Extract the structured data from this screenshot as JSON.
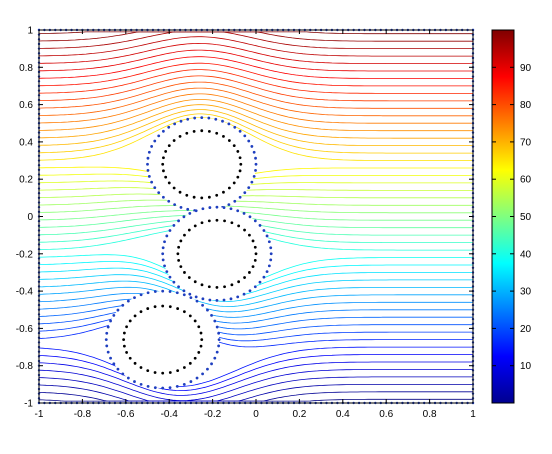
{
  "chart_data": {
    "type": "line",
    "title": "",
    "xlabel": "",
    "ylabel": "",
    "xlim": [
      -1,
      1
    ],
    "ylim": [
      -1,
      1
    ],
    "grid": false,
    "colormap": "jet",
    "colorbar": {
      "range": [
        0,
        100
      ],
      "ticks": [
        10,
        20,
        30,
        40,
        50,
        60,
        70,
        80,
        90
      ],
      "placement": "right"
    },
    "x_ticks": [
      -1,
      -0.8,
      -0.6,
      -0.4,
      -0.2,
      0,
      0.2,
      0.4,
      0.6,
      0.8,
      1
    ],
    "y_ticks": [
      -1,
      -0.8,
      -0.6,
      -0.4,
      -0.2,
      0,
      0.2,
      0.4,
      0.6,
      0.8,
      1
    ],
    "x_tick_labels": [
      "-1",
      "-0.8",
      "-0.6",
      "-0.4",
      "-0.2",
      "0",
      "0.2",
      "0.4",
      "0.6",
      "0.8",
      "1"
    ],
    "y_tick_labels": [
      "-1",
      "-0.8",
      "-0.6",
      "-0.4",
      "-0.2",
      "0",
      "0.2",
      "0.4",
      "0.6",
      "0.8",
      "1"
    ],
    "colorbar_tick_labels": [
      "10",
      "20",
      "30",
      "40",
      "50",
      "60",
      "70",
      "80",
      "90"
    ],
    "streamline_count": 50,
    "obstacles": [
      {
        "cx": -0.25,
        "cy": 0.28,
        "r": 0.25,
        "inner_cx": -0.25,
        "inner_cy": 0.28,
        "inner_r": 0.18
      },
      {
        "cx": -0.18,
        "cy": -0.2,
        "r": 0.25,
        "inner_cx": -0.18,
        "inner_cy": -0.2,
        "inner_r": 0.18
      },
      {
        "cx": -0.43,
        "cy": -0.66,
        "r": 0.26,
        "inner_cx": -0.43,
        "inner_cy": -0.66,
        "inner_r": 0.18
      }
    ],
    "boundary_dots": "blue dotted square boundary at x=-1, x=1, y=-1, y=1"
  }
}
